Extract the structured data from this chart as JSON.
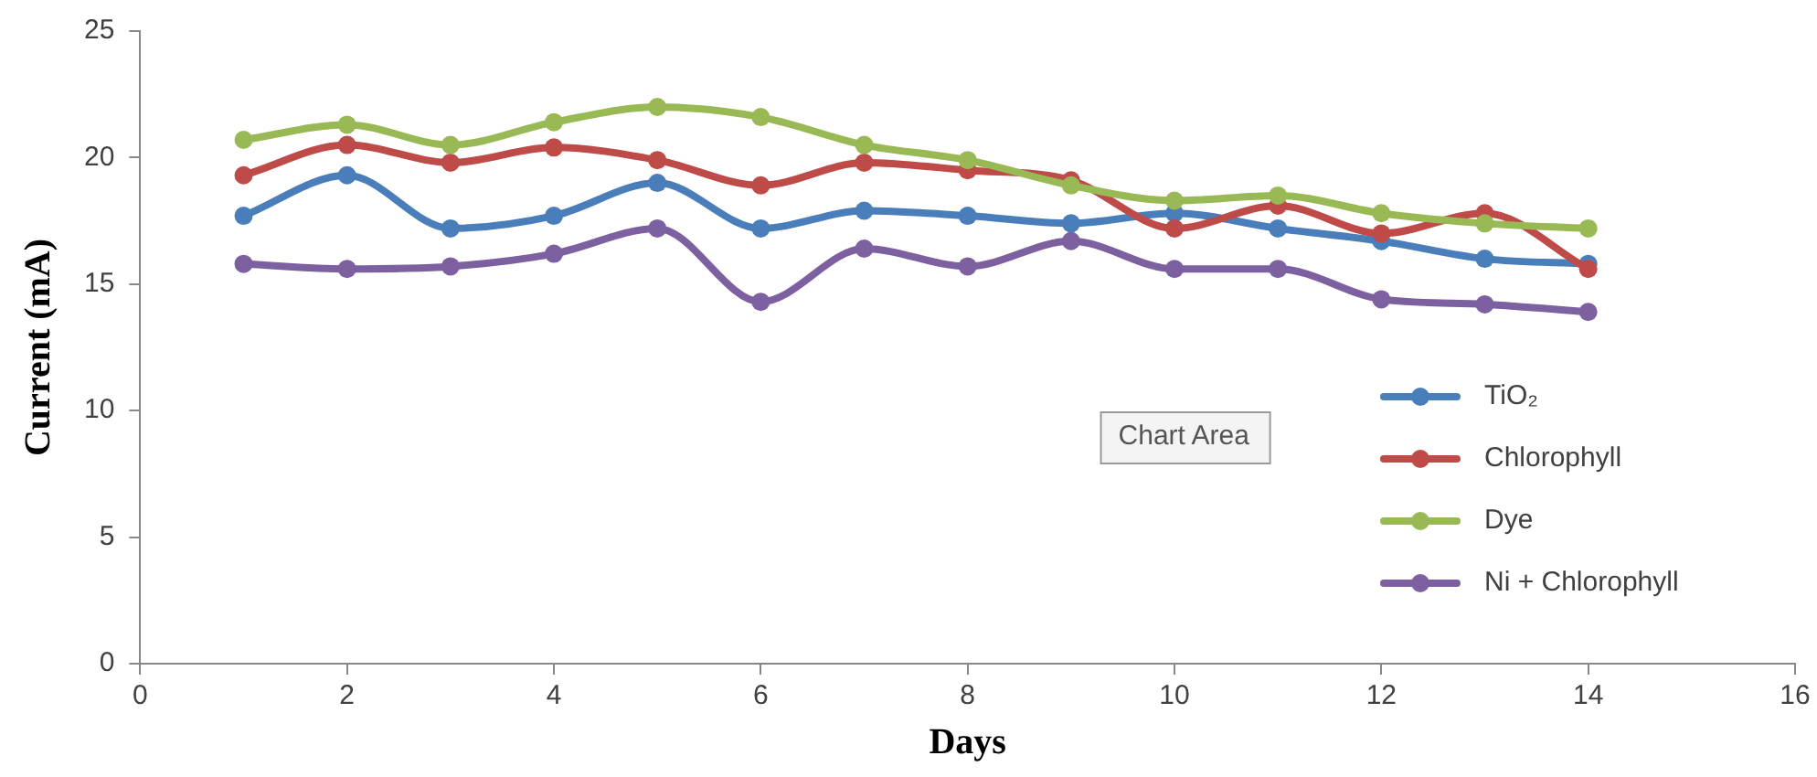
{
  "chart_data": {
    "type": "line",
    "xlabel": "Days",
    "ylabel": "Current (mA)",
    "x": [
      1,
      2,
      3,
      4,
      5,
      6,
      7,
      8,
      9,
      10,
      11,
      12,
      13,
      14
    ],
    "series": [
      {
        "name": "TiO₂",
        "color": "#4a7ebb",
        "values": [
          17.7,
          19.3,
          17.2,
          17.7,
          19.0,
          17.2,
          17.9,
          17.7,
          17.4,
          17.8,
          17.2,
          16.7,
          16.0,
          15.8
        ]
      },
      {
        "name": "Chlorophyll",
        "color": "#be4b48",
        "values": [
          19.3,
          20.5,
          19.8,
          20.4,
          19.9,
          18.9,
          19.8,
          19.5,
          19.1,
          17.2,
          18.1,
          17.0,
          17.8,
          15.6
        ]
      },
      {
        "name": "Dye",
        "color": "#98b954",
        "values": [
          20.7,
          21.3,
          20.5,
          21.4,
          22.0,
          21.6,
          20.5,
          19.9,
          18.9,
          18.3,
          18.5,
          17.8,
          17.4,
          17.2
        ]
      },
      {
        "name": "Ni + Chlorophyll",
        "color": "#7d60a0",
        "values": [
          15.8,
          15.6,
          15.7,
          16.2,
          17.2,
          14.3,
          16.4,
          15.7,
          16.7,
          15.6,
          15.6,
          14.4,
          14.2,
          13.9
        ]
      }
    ],
    "xlim": [
      0,
      16
    ],
    "xticks": [
      0,
      2,
      4,
      6,
      8,
      10,
      12,
      14,
      16
    ],
    "ylim": [
      0,
      25
    ],
    "yticks": [
      0,
      5,
      10,
      15,
      20,
      25
    ],
    "grid": false,
    "legend": "right",
    "marker": "circle",
    "line_style": "solid",
    "annotations": [
      "Chart Area"
    ]
  }
}
